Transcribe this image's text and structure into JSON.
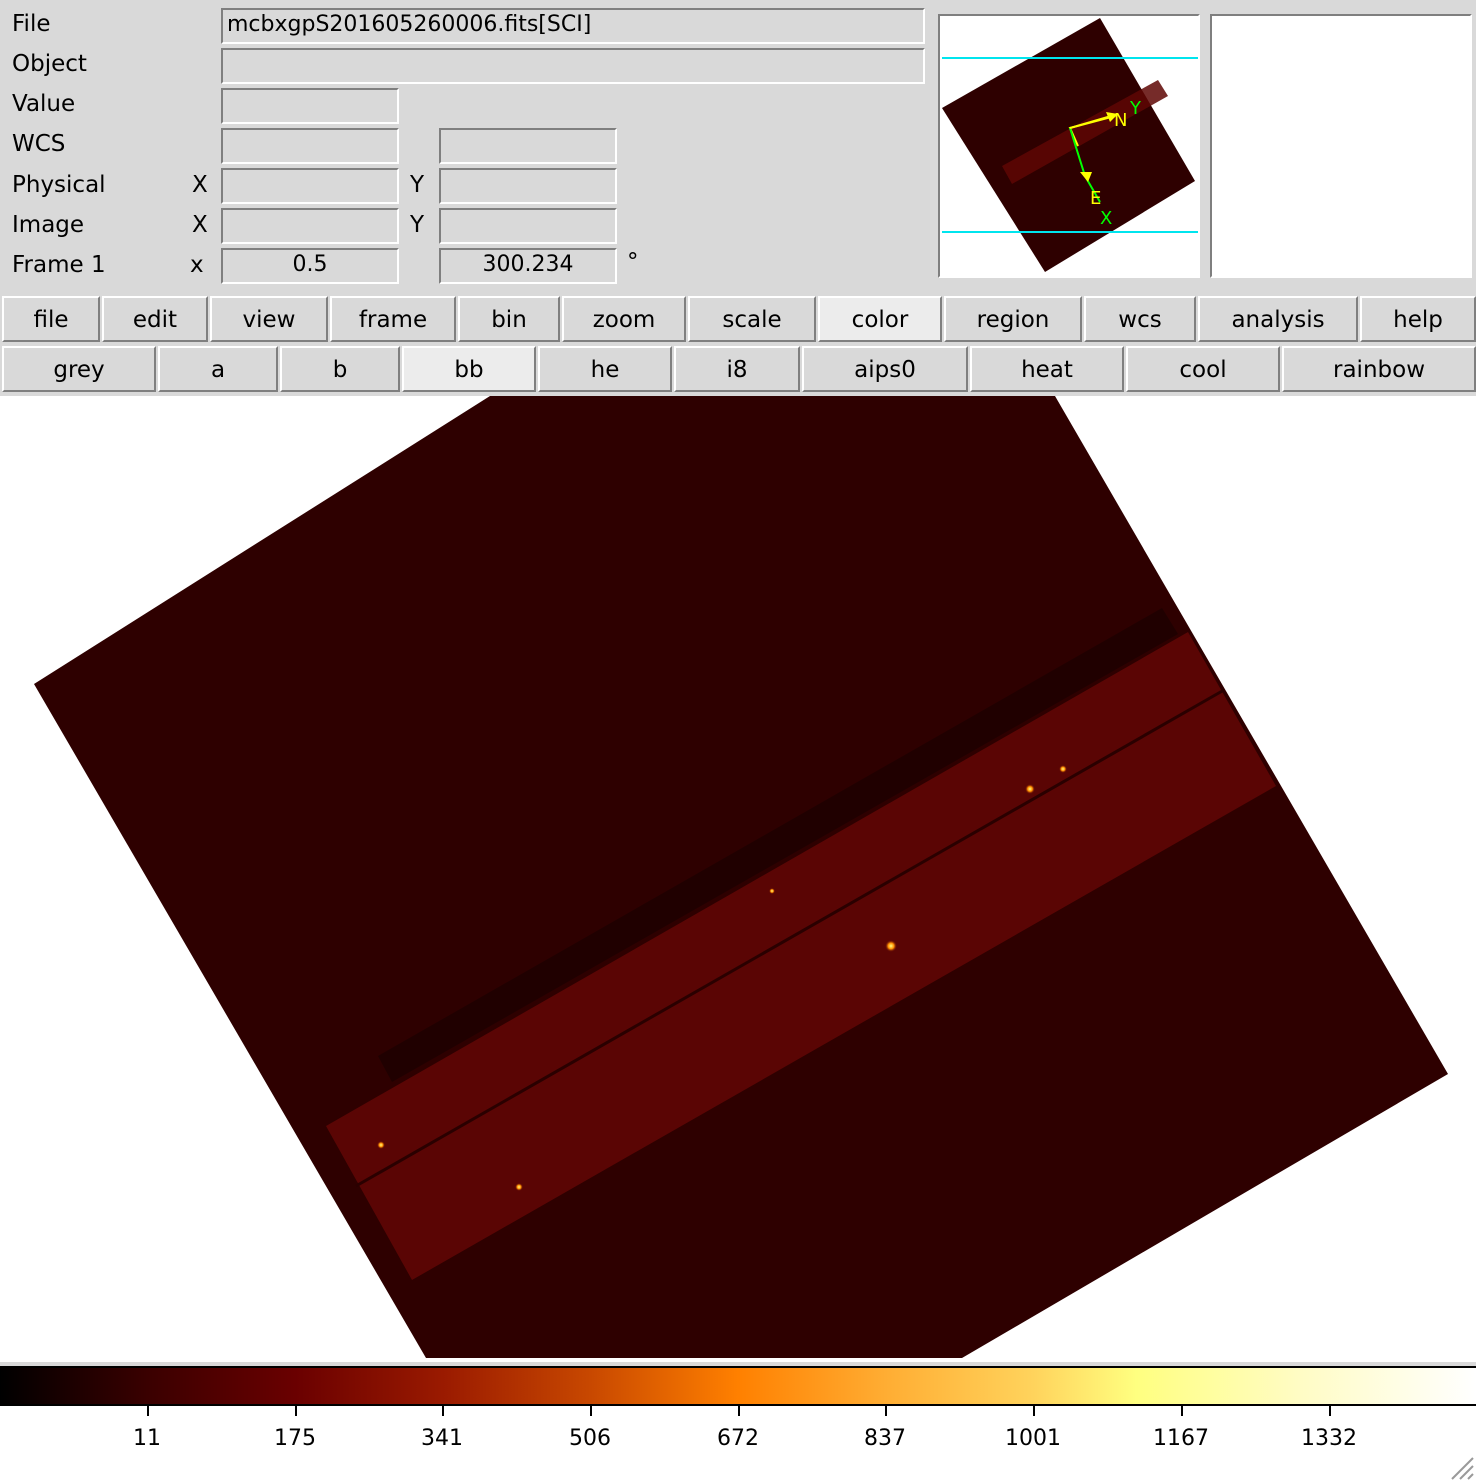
{
  "info_panel": {
    "file_label": "File",
    "file_value": "mcbxgpS201605260006.fits[SCI]",
    "object_label": "Object",
    "object_value": "",
    "value_label": "Value",
    "value_value": "",
    "wcs_label": "WCS",
    "wcs_x_value": "",
    "wcs_y_value": "",
    "physical_label": "Physical",
    "physical_x_axis": "X",
    "physical_y_axis": "Y",
    "physical_x_value": "",
    "physical_y_value": "",
    "image_label": "Image",
    "image_x_axis": "X",
    "image_y_axis": "Y",
    "image_x_value": "",
    "image_y_value": "",
    "frame_label": "Frame 1",
    "frame_zoom_sym": "x",
    "frame_zoom_value": "0.5",
    "frame_angle_value": "300.234",
    "frame_angle_unit": "°"
  },
  "panner": {
    "compass_n": "N",
    "compass_e": "E",
    "compass_x": "X",
    "compass_y": "Y"
  },
  "main_menu": [
    "file",
    "edit",
    "view",
    "frame",
    "bin",
    "zoom",
    "scale",
    "color",
    "region",
    "wcs",
    "analysis",
    "help"
  ],
  "active_main_menu": "color",
  "colormap_buttons": [
    "grey",
    "a",
    "b",
    "bb",
    "he",
    "i8",
    "aips0",
    "heat",
    "cool",
    "rainbow"
  ],
  "active_colormap": "bb",
  "colorbar": {
    "colormap": "bb",
    "tick_labels": [
      "11",
      "175",
      "341",
      "506",
      "672",
      "837",
      "1001",
      "1167",
      "1332"
    ]
  },
  "colors": {
    "ui_background": "#d9d9d9",
    "image_background": "#2e0000",
    "band": "#5e0604",
    "guide_lines": "#00e5ee",
    "compass_primary": "#ffff00",
    "compass_secondary": "#00ff00"
  }
}
